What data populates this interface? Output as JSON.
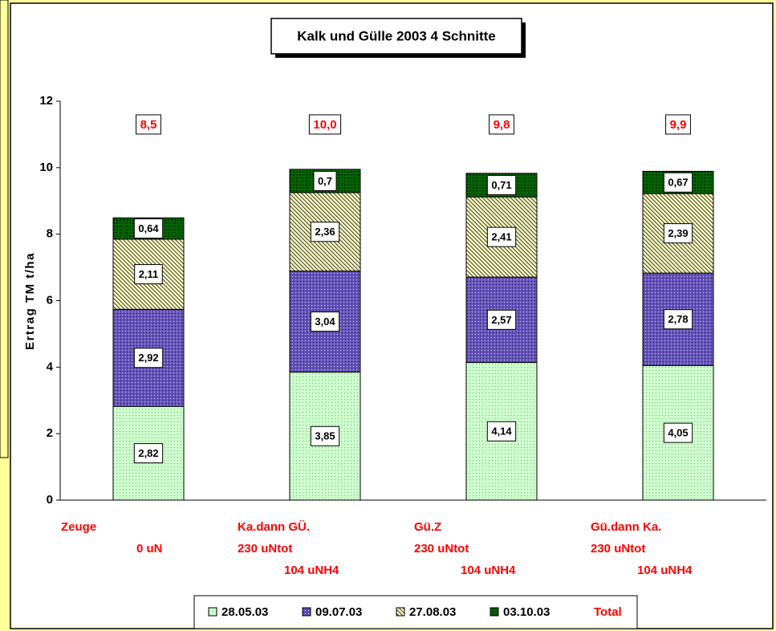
{
  "chart_data": {
    "type": "stacked_bar",
    "title": "Kalk und Gülle  2003   4 Schnitte",
    "y_axis_label": "Ertrag TM    t/ha",
    "categories": [
      [
        "Zeuge",
        "0 uN"
      ],
      [
        "Ka.dann GÜ.",
        "230 uNtot",
        "104 uNH4"
      ],
      [
        "Gü.Z",
        "230 uNtot",
        "104 uNH4"
      ],
      [
        "Gü.dann Ka.",
        "230 uNtot",
        "104 uNH4"
      ]
    ],
    "series": [
      {
        "name": "28.05.03",
        "color": "#ccffcc",
        "values": [
          2.82,
          3.85,
          4.14,
          4.05
        ],
        "value_labels": [
          "2,82",
          "3,85",
          "4,14",
          "4,05"
        ]
      },
      {
        "name": "09.07.03",
        "color": "#6655bb",
        "values": [
          2.92,
          3.04,
          2.57,
          2.78
        ],
        "value_labels": [
          "2,92",
          "3,04",
          "2,57",
          "2,78"
        ]
      },
      {
        "name": "27.08.03",
        "color": "#ffffcc",
        "values": [
          2.11,
          2.36,
          2.41,
          2.39
        ],
        "value_labels": [
          "2,11",
          "2,36",
          "2,41",
          "2,39"
        ]
      },
      {
        "name": "03.10.03",
        "color": "#006600",
        "values": [
          0.64,
          0.7,
          0.71,
          0.67
        ],
        "value_labels": [
          "0,64",
          "0,7",
          "0,71",
          "0,67"
        ]
      }
    ],
    "totals": {
      "name": "Total",
      "color": "#ff0000",
      "values": [
        8.5,
        10.0,
        9.8,
        9.9
      ],
      "value_labels": [
        "8,5",
        "10,0",
        "9,8",
        "9,9"
      ]
    },
    "ylim": [
      0,
      12
    ],
    "yticks": [
      0,
      2,
      4,
      6,
      8,
      10,
      12
    ],
    "grid": false
  }
}
